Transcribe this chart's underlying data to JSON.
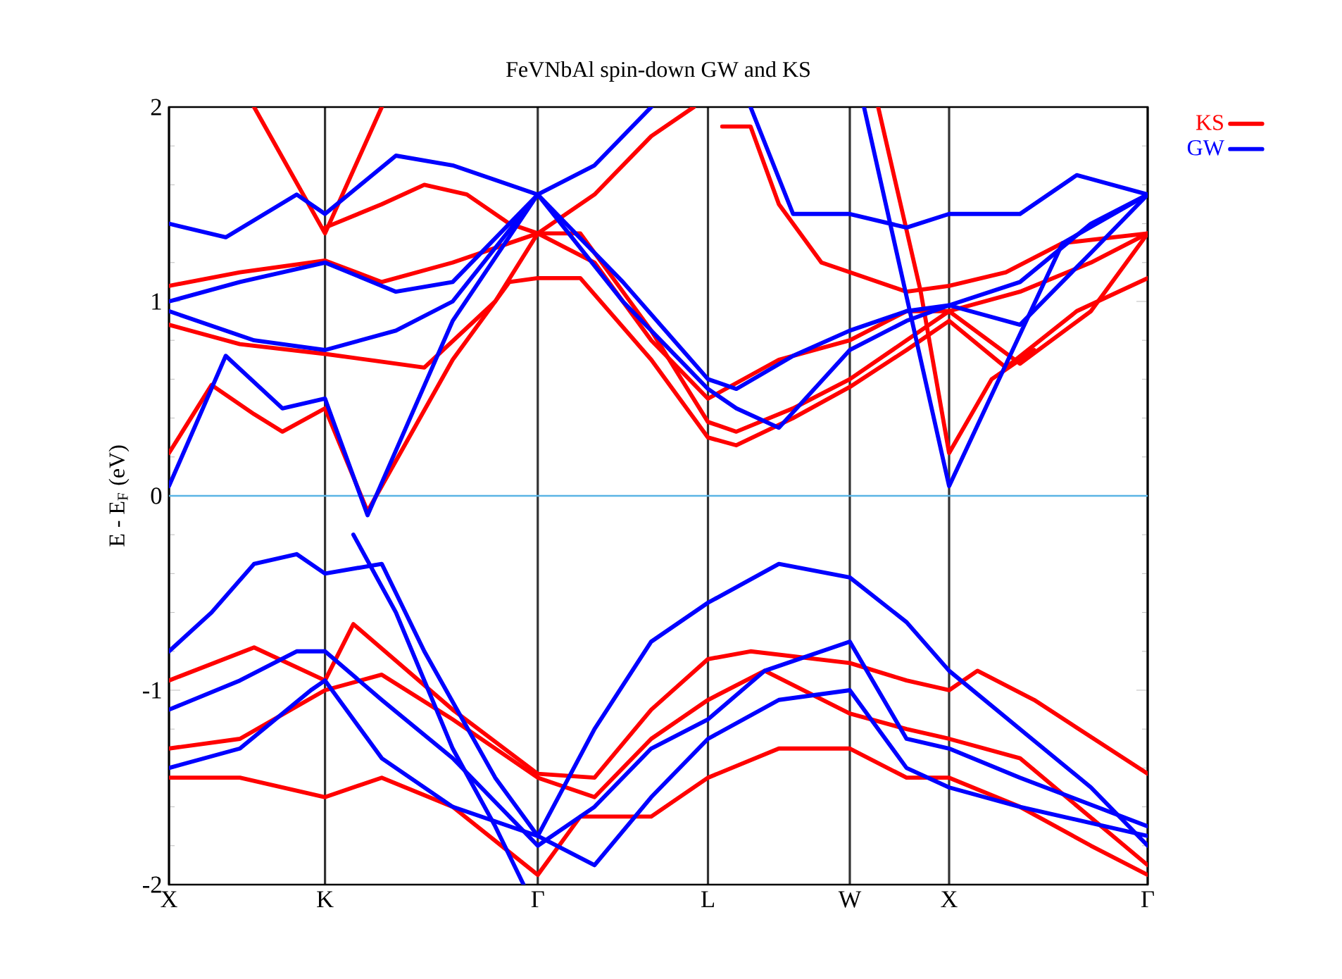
{
  "chart_data": {
    "type": "line",
    "title": "FeVNbAl spin-down GW and KS",
    "ylabel": "E - E$_{F}$ (eV)",
    "categories": [
      "X",
      null,
      null,
      null,
      null,
      null,
      null,
      null,
      null,
      null,
      null,
      "K",
      null,
      null,
      null,
      null,
      null,
      null,
      null,
      null,
      null,
      null,
      null,
      null,
      null,
      null,
      "Γ",
      null,
      null,
      null,
      null,
      null,
      null,
      null,
      null,
      null,
      null,
      null,
      "L",
      null,
      null,
      null,
      null,
      null,
      null,
      null,
      null,
      null,
      "W",
      null,
      null,
      null,
      null,
      null,
      null,
      "X",
      null,
      null,
      null,
      null,
      null,
      null,
      null,
      null,
      null,
      null,
      null,
      null,
      null,
      "Γ"
    ],
    "ylim": [
      -2,
      2
    ],
    "yticks": [
      -2,
      -1,
      0,
      1,
      2
    ],
    "legend": "top right",
    "grid": "x",
    "line_style": "solid",
    "ref_lines": [
      {
        "axis": "y",
        "value": 0,
        "color": "#5ab4e5"
      }
    ],
    "series": [
      {
        "name": "KS",
        "color": "#ff0000",
        "values": [
          0.22,
          null,
          null,
          0.57,
          null,
          null,
          0.42,
          null,
          0.33,
          null,
          null,
          0.45,
          null,
          null,
          -0.08,
          null,
          null,
          null,
          null,
          null,
          0.7,
          null,
          null,
          null,
          1.1,
          null,
          1.12,
          null,
          null,
          1.12,
          null,
          null,
          null,
          null,
          0.7,
          null,
          null,
          null,
          0.3,
          null,
          0.26,
          null,
          null,
          null,
          0.4,
          null,
          null,
          null,
          0.56,
          null,
          null,
          null,
          0.75,
          null,
          null,
          0.9,
          null,
          null,
          null,
          0.66,
          null,
          null,
          null,
          null,
          0.95,
          null,
          null,
          null,
          null,
          1.12
        ]
      },
      {
        "color": "#ff0000",
        "values": [
          1.08,
          null,
          null,
          null,
          null,
          1.15,
          null,
          null,
          null,
          null,
          null,
          1.21,
          null,
          null,
          null,
          1.1,
          null,
          null,
          null,
          null,
          1.2,
          null,
          null,
          null,
          null,
          null,
          1.35,
          null,
          null,
          1.35,
          null,
          null,
          null,
          null,
          0.85,
          null,
          null,
          null,
          0.38,
          null,
          0.33,
          null,
          null,
          null,
          0.45,
          null,
          null,
          null,
          0.6,
          null,
          null,
          null,
          0.8,
          null,
          null,
          0.95,
          null,
          null,
          null,
          null,
          1.05,
          null,
          null,
          null,
          null,
          1.2,
          null,
          null,
          null,
          1.35
        ]
      },
      {
        "color": "#ff0000",
        "values": [
          0.88,
          null,
          null,
          null,
          null,
          0.78,
          null,
          null,
          null,
          null,
          null,
          0.73,
          null,
          null,
          null,
          null,
          null,
          null,
          0.66,
          null,
          null,
          null,
          null,
          1.0,
          null,
          null,
          1.35,
          null,
          null,
          null,
          1.2,
          null,
          null,
          null,
          0.8,
          null,
          null,
          null,
          0.5,
          null,
          null,
          null,
          null,
          0.7,
          null,
          null,
          null,
          null,
          0.8,
          null,
          null,
          null,
          0.95,
          null,
          null,
          0.95,
          null,
          null,
          null,
          null,
          0.68,
          null,
          null,
          null,
          null,
          0.95,
          null,
          null,
          null,
          1.35
        ]
      },
      {
        "color": "#ff0000",
        "values": [
          null,
          null,
          null,
          null,
          null,
          null,
          2.0,
          null,
          null,
          null,
          null,
          1.35,
          null,
          null,
          null,
          2.0,
          null,
          null,
          null,
          null,
          null,
          null,
          null,
          null,
          null,
          null,
          null,
          null,
          null,
          null,
          null,
          null,
          null,
          null,
          null,
          null,
          null,
          null,
          null,
          null,
          null,
          null,
          null,
          null,
          null,
          null,
          null,
          null,
          null,
          null,
          null,
          null,
          null,
          null,
          null,
          null,
          null,
          null,
          null,
          null,
          null,
          null,
          null,
          null,
          null,
          null,
          null,
          null,
          null,
          null
        ]
      },
      {
        "color": "#ff0000",
        "values": [
          null,
          null,
          null,
          null,
          null,
          null,
          null,
          null,
          null,
          null,
          null,
          1.38,
          null,
          null,
          null,
          1.5,
          null,
          null,
          1.6,
          null,
          null,
          1.55,
          null,
          null,
          1.4,
          null,
          1.35,
          null,
          null,
          null,
          1.55,
          null,
          null,
          null,
          1.85,
          null,
          null,
          2.0,
          null,
          null,
          null,
          null,
          null,
          null,
          null,
          null,
          null,
          null,
          null,
          null,
          null,
          null,
          null,
          null,
          null,
          null,
          null,
          null,
          null,
          null,
          null,
          null,
          null,
          null,
          null,
          null,
          null,
          null,
          null,
          null
        ]
      },
      {
        "color": "#ff0000",
        "values": [
          null,
          null,
          null,
          null,
          null,
          null,
          null,
          null,
          null,
          null,
          null,
          null,
          null,
          null,
          null,
          null,
          null,
          null,
          null,
          null,
          null,
          null,
          null,
          null,
          null,
          null,
          null,
          null,
          null,
          null,
          null,
          null,
          null,
          null,
          null,
          null,
          null,
          null,
          null,
          1.9,
          null,
          1.9,
          null,
          1.5,
          null,
          null,
          1.2,
          null,
          1.15,
          null,
          null,
          null,
          1.05,
          null,
          null,
          1.08,
          null,
          null,
          null,
          1.15,
          null,
          null,
          null,
          1.3,
          null,
          null,
          null,
          null,
          null,
          1.35
        ]
      },
      {
        "color": "#ff0000",
        "values": [
          null,
          null,
          null,
          null,
          null,
          null,
          null,
          null,
          null,
          null,
          null,
          null,
          null,
          null,
          null,
          null,
          null,
          null,
          null,
          null,
          null,
          null,
          null,
          null,
          null,
          null,
          null,
          null,
          null,
          null,
          null,
          null,
          null,
          null,
          null,
          null,
          null,
          null,
          null,
          null,
          null,
          null,
          null,
          null,
          null,
          null,
          null,
          null,
          null,
          null,
          2.0,
          null,
          null,
          1.05,
          null,
          0.22,
          null,
          null,
          0.6,
          null,
          null,
          0.75,
          null,
          null,
          null,
          null,
          null,
          null,
          null,
          null
        ]
      },
      {
        "color": "#ff0000",
        "values": [
          -0.95,
          null,
          null,
          null,
          null,
          null,
          -0.78,
          null,
          null,
          null,
          null,
          -0.95,
          null,
          -0.66,
          null,
          null,
          null,
          null,
          null,
          null,
          -1.1,
          null,
          null,
          null,
          null,
          null,
          -1.43,
          null,
          null,
          null,
          -1.45,
          null,
          null,
          null,
          -1.1,
          null,
          null,
          null,
          -0.84,
          null,
          null,
          -0.8,
          null,
          null,
          null,
          null,
          null,
          null,
          -0.86,
          null,
          null,
          null,
          -0.95,
          null,
          null,
          -1.0,
          null,
          -0.9,
          null,
          null,
          null,
          -1.05,
          null,
          null,
          null,
          null,
          null,
          null,
          null,
          -1.43
        ]
      },
      {
        "color": "#ff0000",
        "values": [
          -1.3,
          null,
          null,
          null,
          null,
          -1.25,
          null,
          null,
          null,
          null,
          null,
          -1.0,
          null,
          null,
          null,
          -0.92,
          null,
          null,
          null,
          null,
          -1.15,
          null,
          null,
          null,
          null,
          null,
          -1.45,
          null,
          null,
          null,
          -1.55,
          null,
          null,
          null,
          -1.25,
          null,
          null,
          null,
          -1.05,
          null,
          null,
          null,
          -0.9,
          null,
          null,
          null,
          null,
          null,
          -1.12,
          null,
          null,
          null,
          -1.2,
          null,
          null,
          -1.25,
          null,
          null,
          null,
          null,
          -1.35,
          null,
          null,
          null,
          null,
          null,
          null,
          null,
          null,
          -1.9
        ]
      },
      {
        "color": "#ff0000",
        "values": [
          -1.45,
          null,
          null,
          null,
          null,
          -1.45,
          null,
          null,
          null,
          null,
          null,
          -1.55,
          null,
          null,
          null,
          -1.45,
          null,
          null,
          null,
          null,
          -1.6,
          null,
          null,
          null,
          null,
          null,
          -1.95,
          null,
          null,
          -1.65,
          null,
          null,
          null,
          null,
          -1.65,
          null,
          null,
          null,
          -1.45,
          null,
          null,
          null,
          null,
          -1.3,
          null,
          null,
          null,
          null,
          -1.3,
          null,
          null,
          null,
          -1.45,
          null,
          null,
          -1.45,
          null,
          null,
          null,
          null,
          -1.6,
          null,
          null,
          null,
          null,
          -1.8,
          null,
          null,
          null,
          -1.95
        ]
      },
      {
        "name": "GW",
        "color": "#0000ff",
        "values": [
          0.05,
          null,
          null,
          null,
          0.72,
          null,
          null,
          null,
          0.45,
          null,
          null,
          0.5,
          null,
          null,
          -0.1,
          null,
          null,
          null,
          null,
          null,
          0.9,
          null,
          null,
          null,
          null,
          null,
          1.55,
          null,
          null,
          null,
          null,
          null,
          1.1,
          null,
          null,
          null,
          null,
          null,
          0.6,
          null,
          0.55,
          null,
          null,
          null,
          0.72,
          null,
          null,
          null,
          0.85,
          null,
          null,
          null,
          0.95,
          null,
          null,
          0.98,
          null,
          null,
          null,
          null,
          1.1,
          null,
          null,
          null,
          null,
          1.4,
          null,
          null,
          null,
          1.55
        ]
      },
      {
        "color": "#0000ff",
        "values": [
          0.95,
          null,
          null,
          null,
          null,
          null,
          0.8,
          null,
          null,
          null,
          null,
          0.75,
          null,
          null,
          null,
          null,
          0.85,
          null,
          null,
          null,
          1.0,
          null,
          null,
          null,
          null,
          null,
          1.55,
          null,
          null,
          null,
          null,
          null,
          1.0,
          null,
          null,
          null,
          null,
          null,
          0.55,
          null,
          0.45,
          null,
          null,
          0.35,
          null,
          null,
          null,
          null,
          0.75,
          null,
          null,
          null,
          0.9,
          null,
          null,
          0.98,
          null,
          null,
          null,
          null,
          0.88,
          null,
          null,
          null,
          null,
          1.25,
          null,
          null,
          null,
          1.55
        ]
      },
      {
        "color": "#0000ff",
        "values": [
          1.0,
          null,
          null,
          null,
          null,
          1.1,
          null,
          null,
          null,
          null,
          null,
          1.2,
          null,
          null,
          null,
          null,
          1.05,
          null,
          null,
          null,
          1.1,
          null,
          null,
          null,
          1.4,
          null,
          1.55,
          null,
          null,
          null,
          1.7,
          null,
          null,
          null,
          2.0,
          null,
          null,
          null,
          null,
          null,
          null,
          null,
          null,
          null,
          null,
          null,
          null,
          null,
          null,
          null,
          null,
          null,
          null,
          null,
          null,
          null,
          null,
          null,
          null,
          null,
          null,
          null,
          null,
          null,
          null,
          null,
          null,
          null,
          null,
          null
        ]
      },
      {
        "color": "#0000ff",
        "values": [
          1.4,
          null,
          null,
          null,
          1.33,
          null,
          null,
          null,
          null,
          1.55,
          null,
          1.45,
          null,
          null,
          null,
          null,
          1.75,
          null,
          null,
          null,
          1.7,
          null,
          null,
          null,
          null,
          null,
          1.55,
          null,
          null,
          null,
          null,
          null,
          null,
          null,
          null,
          null,
          null,
          null,
          null,
          null,
          null,
          null,
          null,
          null,
          null,
          null,
          null,
          null,
          null,
          null,
          null,
          null,
          null,
          null,
          null,
          null,
          null,
          null,
          null,
          null,
          null,
          null,
          null,
          null,
          null,
          null,
          null,
          null,
          null,
          null
        ]
      },
      {
        "color": "#0000ff",
        "values": [
          null,
          null,
          null,
          null,
          null,
          null,
          null,
          null,
          null,
          null,
          null,
          null,
          null,
          null,
          null,
          null,
          null,
          null,
          null,
          null,
          null,
          null,
          null,
          null,
          null,
          null,
          null,
          null,
          null,
          null,
          null,
          null,
          null,
          null,
          null,
          null,
          null,
          null,
          null,
          null,
          null,
          2.0,
          null,
          null,
          1.45,
          null,
          null,
          null,
          1.45,
          null,
          null,
          null,
          1.38,
          null,
          null,
          1.45,
          null,
          null,
          null,
          null,
          1.45,
          null,
          null,
          null,
          1.65,
          null,
          null,
          null,
          null,
          1.55
        ]
      },
      {
        "color": "#0000ff",
        "values": [
          null,
          null,
          null,
          null,
          null,
          null,
          null,
          null,
          null,
          null,
          null,
          null,
          null,
          null,
          null,
          null,
          null,
          null,
          null,
          null,
          null,
          null,
          null,
          null,
          null,
          null,
          null,
          null,
          null,
          null,
          null,
          null,
          null,
          null,
          null,
          null,
          null,
          null,
          null,
          null,
          null,
          null,
          null,
          null,
          null,
          null,
          null,
          null,
          null,
          2.0,
          null,
          null,
          null,
          null,
          null,
          0.05,
          null,
          null,
          null,
          null,
          null,
          null,
          null,
          1.3,
          null,
          null,
          null,
          null,
          null,
          1.55
        ]
      },
      {
        "color": "#0000ff",
        "values": [
          -0.8,
          null,
          null,
          -0.6,
          null,
          null,
          -0.35,
          null,
          null,
          -0.3,
          null,
          -0.4,
          null,
          null,
          null,
          -0.35,
          null,
          null,
          -0.8,
          null,
          null,
          null,
          null,
          -1.45,
          null,
          null,
          -1.75,
          null,
          null,
          null,
          -1.2,
          null,
          null,
          null,
          -0.75,
          null,
          null,
          null,
          -0.55,
          null,
          null,
          null,
          null,
          -0.35,
          null,
          null,
          null,
          null,
          -0.42,
          null,
          null,
          null,
          -0.65,
          null,
          null,
          -0.9,
          null,
          null,
          null,
          null,
          -1.2,
          null,
          null,
          null,
          null,
          -1.5,
          null,
          null,
          null,
          -1.8
        ]
      },
      {
        "color": "#0000ff",
        "values": [
          -1.1,
          null,
          null,
          null,
          null,
          -0.95,
          null,
          null,
          null,
          -0.8,
          null,
          -0.8,
          null,
          null,
          null,
          -1.05,
          null,
          null,
          null,
          null,
          -1.35,
          null,
          null,
          null,
          null,
          null,
          -1.8,
          null,
          null,
          null,
          -1.6,
          null,
          null,
          null,
          -1.3,
          null,
          null,
          null,
          -1.15,
          null,
          null,
          null,
          -0.9,
          null,
          null,
          null,
          null,
          null,
          -0.75,
          null,
          null,
          null,
          -1.25,
          null,
          null,
          -1.3,
          null,
          null,
          null,
          null,
          -1.45,
          null,
          null,
          null,
          null,
          null,
          null,
          null,
          null,
          -1.7
        ]
      },
      {
        "color": "#0000ff",
        "values": [
          -1.4,
          null,
          null,
          null,
          null,
          -1.3,
          null,
          null,
          null,
          null,
          -1.0,
          -0.95,
          null,
          null,
          null,
          -1.35,
          null,
          null,
          null,
          null,
          -1.6,
          null,
          null,
          null,
          null,
          null,
          -1.75,
          null,
          null,
          null,
          -1.9,
          null,
          null,
          null,
          -1.55,
          null,
          null,
          null,
          -1.25,
          null,
          null,
          null,
          null,
          -1.05,
          null,
          null,
          null,
          null,
          -1.0,
          null,
          null,
          null,
          -1.4,
          null,
          null,
          -1.5,
          null,
          null,
          null,
          null,
          -1.6,
          null,
          null,
          null,
          null,
          null,
          null,
          null,
          null,
          -1.75
        ]
      },
      {
        "color": "#0000ff",
        "values": [
          null,
          null,
          null,
          null,
          null,
          null,
          null,
          null,
          null,
          null,
          null,
          null,
          null,
          -0.2,
          null,
          null,
          -0.6,
          null,
          null,
          null,
          -1.3,
          null,
          null,
          -1.7,
          null,
          -2.0,
          null,
          null,
          null,
          null,
          null,
          null,
          null,
          null,
          null,
          null,
          null,
          null,
          null,
          null,
          null,
          null,
          null,
          null,
          null,
          null,
          null,
          null,
          null,
          null,
          null,
          null,
          null,
          null,
          null,
          null,
          null,
          null,
          null,
          null,
          null,
          null,
          null,
          null,
          null,
          null,
          null,
          null,
          null,
          null
        ]
      }
    ]
  }
}
